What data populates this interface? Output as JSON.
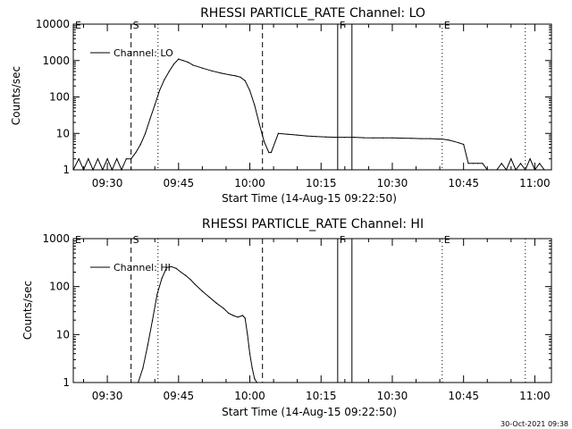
{
  "chart_data": [
    {
      "type": "line",
      "title": "RHESSI PARTICLE_RATE Channel: LO",
      "xlabel": "Start Time (14-Aug-15 09:22:50)",
      "ylabel": "Counts/sec",
      "yscale": "log",
      "ylim": [
        1,
        10000
      ],
      "xlim": [
        "09:22:50",
        "11:03:30"
      ],
      "x_ticks": [
        "09:30",
        "09:45",
        "10:00",
        "10:15",
        "10:30",
        "10:45",
        "11:00"
      ],
      "y_ticks": [
        "1",
        "10",
        "100",
        "1000",
        "10000"
      ],
      "legend": {
        "label": "Channel: LO",
        "position": "top-left"
      },
      "markers": [
        {
          "label": "E",
          "time": "09:22:50",
          "style": "dotted"
        },
        {
          "label": "S",
          "time": "09:35:00",
          "style": "dashed"
        },
        {
          "label": "",
          "time": "09:40:40",
          "style": "dotted"
        },
        {
          "label": "",
          "time": "10:02:40",
          "style": "dashed"
        },
        {
          "label": "F",
          "time": "10:18:30",
          "style": "solid"
        },
        {
          "label": "",
          "time": "10:21:30",
          "style": "solid"
        },
        {
          "label": "E",
          "time": "10:40:30",
          "style": "dotted"
        },
        {
          "label": "",
          "time": "10:58:00",
          "style": "dotted"
        }
      ],
      "series": [
        {
          "name": "Channel: LO",
          "x": [
            "09:22:50",
            "09:24:00",
            "09:25:00",
            "09:26:00",
            "09:27:00",
            "09:28:00",
            "09:29:00",
            "09:30:00",
            "09:31:00",
            "09:32:00",
            "09:33:00",
            "09:34:00",
            "09:35:00",
            "09:36:00",
            "09:37:00",
            "09:38:00",
            "09:39:00",
            "09:40:00",
            "09:41:00",
            "09:42:00",
            "09:43:00",
            "09:44:00",
            "09:45:00",
            "09:46:00",
            "09:47:00",
            "09:48:00",
            "09:50:00",
            "09:52:00",
            "09:54:00",
            "09:56:00",
            "09:57:00",
            "09:58:00",
            "09:59:00",
            "10:00:00",
            "10:01:00",
            "10:02:00",
            "10:03:00",
            "10:04:00",
            "10:04:30",
            "10:06:00",
            "10:08:00",
            "10:10:00",
            "10:12:00",
            "10:14:00",
            "10:16:00",
            "10:18:00",
            "10:20:00",
            "10:22:00",
            "10:24:00",
            "10:26:00",
            "10:28:00",
            "10:30:00",
            "10:32:00",
            "10:34:00",
            "10:36:00",
            "10:38:00",
            "10:40:00",
            "10:40:30",
            "10:42:00",
            "10:43:00",
            "10:44:00",
            "10:45:00",
            "10:46:00",
            "10:47:00",
            "10:48:00",
            "10:49:00",
            "10:50:00",
            "10:51:00",
            "10:52:00",
            "10:53:00",
            "10:54:00",
            "10:55:00",
            "10:56:00",
            "10:57:00",
            "10:58:00",
            "10:59:00",
            "11:00:00",
            "11:01:00",
            "11:02:00",
            "11:03:30"
          ],
          "y": [
            1,
            2,
            1,
            2,
            1,
            2,
            1,
            2,
            1,
            2,
            1,
            2,
            2,
            3,
            5,
            10,
            25,
            60,
            150,
            300,
            500,
            800,
            1100,
            1000,
            900,
            750,
            620,
            520,
            450,
            400,
            380,
            350,
            280,
            150,
            60,
            18,
            6,
            3,
            3,
            10,
            9.5,
            9,
            8.5,
            8.2,
            8,
            7.8,
            7.8,
            7.8,
            7.6,
            7.5,
            7.5,
            7.5,
            7.4,
            7.3,
            7.2,
            7.2,
            7,
            7,
            6.5,
            6.0,
            5.5,
            5.0,
            1.5,
            1.5,
            1.5,
            1.5,
            1,
            1,
            1,
            1.5,
            1,
            2,
            1,
            1.5,
            1,
            2,
            1,
            1.5,
            1,
            1
          ]
        }
      ]
    },
    {
      "type": "line",
      "title": "RHESSI PARTICLE_RATE Channel: HI",
      "xlabel": "Start Time (14-Aug-15 09:22:50)",
      "ylabel": "Counts/sec",
      "yscale": "log",
      "ylim": [
        1,
        1000
      ],
      "xlim": [
        "09:22:50",
        "11:03:30"
      ],
      "x_ticks": [
        "09:30",
        "09:45",
        "10:00",
        "10:15",
        "10:30",
        "10:45",
        "11:00"
      ],
      "y_ticks": [
        "1",
        "10",
        "100",
        "1000"
      ],
      "legend": {
        "label": "Channel: HI",
        "position": "top-left"
      },
      "markers": [
        {
          "label": "E",
          "time": "09:22:50",
          "style": "dotted"
        },
        {
          "label": "S",
          "time": "09:35:00",
          "style": "dashed"
        },
        {
          "label": "",
          "time": "09:40:40",
          "style": "dotted"
        },
        {
          "label": "",
          "time": "10:02:40",
          "style": "dashed"
        },
        {
          "label": "F",
          "time": "10:18:30",
          "style": "solid"
        },
        {
          "label": "",
          "time": "10:21:30",
          "style": "solid"
        },
        {
          "label": "E",
          "time": "10:40:30",
          "style": "dotted"
        },
        {
          "label": "",
          "time": "10:58:00",
          "style": "dotted"
        }
      ],
      "series": [
        {
          "name": "Channel: HI",
          "x": [
            "09:36:30",
            "09:37:30",
            "09:38:30",
            "09:39:30",
            "09:40:30",
            "09:41:30",
            "09:42:30",
            "09:43:30",
            "09:44:30",
            "09:45:30",
            "09:46:30",
            "09:47:30",
            "09:48:30",
            "09:50:00",
            "09:51:30",
            "09:53:00",
            "09:54:30",
            "09:55:30",
            "09:56:30",
            "09:57:30",
            "09:58:30",
            "09:59:00",
            "09:59:30",
            "10:00:00",
            "10:00:30",
            "10:01:00",
            "10:01:30"
          ],
          "y": [
            1,
            2,
            6,
            20,
            70,
            150,
            250,
            260,
            240,
            200,
            170,
            140,
            110,
            80,
            60,
            45,
            35,
            28,
            25,
            23,
            25,
            22,
            10,
            4,
            2,
            1.2,
            1
          ]
        }
      ]
    }
  ],
  "footer": {
    "stamp": "30-Oct-2021 09:38"
  }
}
